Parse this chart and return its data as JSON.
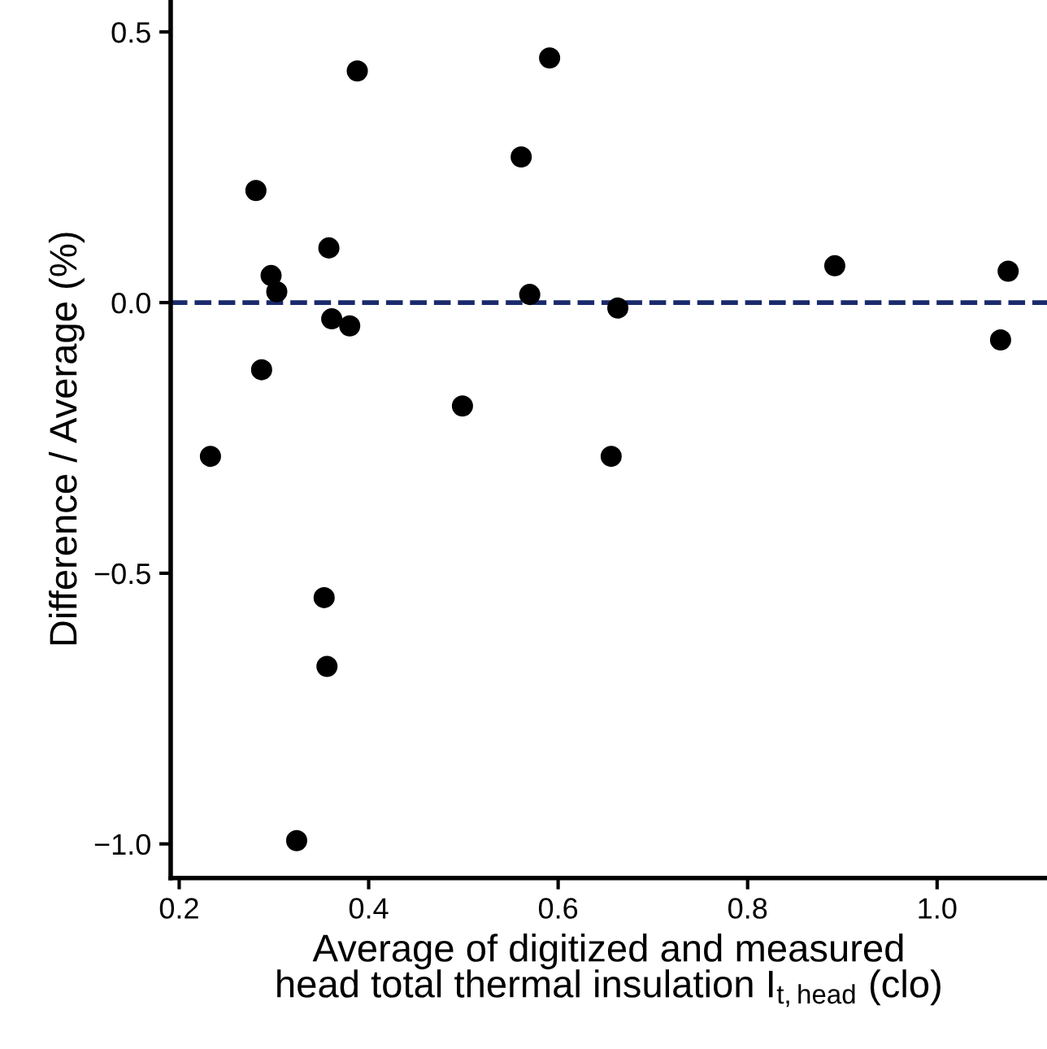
{
  "chart_data": {
    "type": "scatter",
    "xlabel": "Average of digitized and measured\nhead total thermal insulation I$_{t,head}$ (clo)",
    "ylabel": "Difference / Average (%)",
    "x": [
      0.233,
      0.281,
      0.287,
      0.297,
      0.303,
      0.358,
      0.361,
      0.38,
      0.388,
      0.499,
      0.561,
      0.57,
      0.591,
      0.656,
      0.663,
      0.892,
      1.067,
      1.075,
      0.353,
      0.356,
      0.324
    ],
    "series": [
      {
        "color": "#000000",
        "values": [
          -0.284,
          0.207,
          -0.124,
          0.05,
          0.02,
          0.101,
          -0.03,
          -0.043,
          0.428,
          -0.191,
          0.269,
          0.015,
          0.452,
          -0.284,
          -0.01,
          0.068,
          -0.069,
          0.058,
          -0.545,
          -0.672,
          -0.994
        ]
      }
    ],
    "xlim": [
      0.191,
      1.116
    ],
    "ylim": [
      -1.063,
      0.559
    ],
    "xticks": [
      0.2,
      0.4,
      0.6,
      0.8,
      {
        "value": 1.0,
        "label": "1.0"
      }
    ],
    "yticks": [
      {
        "value": -1.0,
        "label": "−1.0"
      },
      {
        "value": -0.5,
        "label": "−0.5"
      },
      {
        "value": 0.0,
        "label": "0.0"
      },
      0.5
    ],
    "ref_lines": [
      {
        "axis": "y",
        "value": 0,
        "color": "#1a2a6c",
        "line_style": "dashed"
      }
    ],
    "marker": "circle",
    "grid": false,
    "legend": false
  }
}
